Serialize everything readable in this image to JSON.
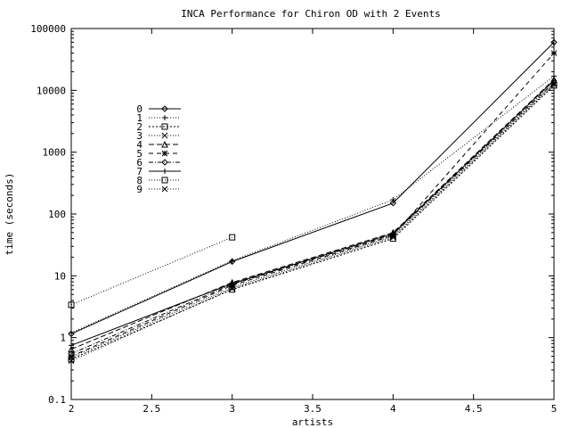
{
  "chart_data": {
    "type": "line",
    "title": "INCA Performance for Chiron OD with 2 Events",
    "xlabel": "artists",
    "ylabel": "time (seconds)",
    "xlim": [
      2,
      5
    ],
    "ylim": [
      0.1,
      100000
    ],
    "yscale": "log",
    "grid": false,
    "legend_position": "top-left",
    "xticks": [
      2,
      2.5,
      3,
      3.5,
      4,
      4.5,
      5
    ],
    "xtick_labels": [
      "2",
      "2.5",
      "3",
      "3.5",
      "4",
      "4.5",
      "5"
    ],
    "yticks": [
      0.1,
      1,
      10,
      100,
      1000,
      10000,
      100000
    ],
    "ytick_labels": [
      "0.1",
      "1",
      "10",
      "100",
      "1000",
      "10000",
      "100000"
    ],
    "series": [
      {
        "name": "0",
        "marker": "diamond",
        "dash": "solid",
        "x": [
          2,
          3,
          4,
          5
        ],
        "y": [
          1.15,
          17,
          150,
          60000
        ]
      },
      {
        "name": "1",
        "marker": "plus",
        "dash": "dotted",
        "x": [
          2,
          3,
          4,
          5
        ],
        "y": [
          1.2,
          17.5,
          170,
          17000
        ]
      },
      {
        "name": "2",
        "marker": "square",
        "dash": "shortdash",
        "x": [
          2,
          3,
          4,
          5
        ],
        "y": [
          0.45,
          6,
          40,
          12000
        ]
      },
      {
        "name": "3",
        "marker": "cross",
        "dash": "dotted",
        "x": [
          2,
          3,
          4,
          5
        ],
        "y": [
          0.42,
          6.2,
          42,
          12500
        ]
      },
      {
        "name": "4",
        "marker": "triangle",
        "dash": "longdash",
        "x": [
          2,
          3,
          4,
          5
        ],
        "y": [
          0.65,
          7.8,
          50,
          15000
        ]
      },
      {
        "name": "5",
        "marker": "star",
        "dash": "dashed",
        "x": [
          2,
          3,
          4,
          5
        ],
        "y": [
          0.5,
          7,
          45,
          40000
        ]
      },
      {
        "name": "6",
        "marker": "diamond",
        "dash": "dashdot",
        "x": [
          2,
          3,
          4,
          5
        ],
        "y": [
          0.55,
          7.3,
          47,
          13500
        ]
      },
      {
        "name": "7",
        "marker": "plus",
        "dash": "solid",
        "x": [
          2,
          3,
          4,
          5
        ],
        "y": [
          0.75,
          7.5,
          48,
          14500
        ]
      },
      {
        "name": "8",
        "marker": "square",
        "dash": "dotted",
        "x": [
          2,
          3
        ],
        "y": [
          3.4,
          42
        ]
      },
      {
        "name": "9",
        "marker": "cross",
        "dash": "dotted",
        "x": [
          2,
          3,
          4,
          5
        ],
        "y": [
          0.48,
          6.5,
          44,
          13000
        ]
      }
    ]
  }
}
